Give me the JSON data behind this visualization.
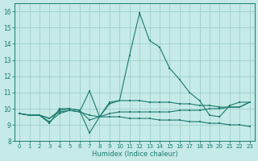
{
  "xlabel": "Humidex (Indice chaleur)",
  "bg_color": "#c5eae7",
  "grid_color": "#9ecfcb",
  "line_color": "#1a7a6e",
  "xlim": [
    -0.5,
    23.5
  ],
  "ylim": [
    8,
    16.5
  ],
  "xticks": [
    0,
    1,
    2,
    3,
    4,
    5,
    6,
    7,
    8,
    9,
    10,
    11,
    12,
    13,
    14,
    15,
    16,
    17,
    18,
    19,
    20,
    21,
    22,
    23
  ],
  "yticks": [
    8,
    9,
    10,
    11,
    12,
    13,
    14,
    15,
    16
  ],
  "line1_x": [
    0,
    1,
    2,
    3,
    4,
    5,
    6,
    7,
    8,
    9,
    10,
    11,
    12,
    13,
    14,
    15,
    16,
    17,
    18,
    19,
    20,
    21,
    22,
    23
  ],
  "line1_y": [
    9.7,
    9.6,
    9.6,
    9.1,
    10.0,
    10.0,
    9.9,
    8.5,
    9.5,
    10.4,
    10.5,
    13.3,
    15.9,
    14.2,
    13.8,
    12.5,
    11.8,
    11.0,
    10.5,
    9.6,
    9.5,
    10.2,
    10.4,
    10.4
  ],
  "line2_x": [
    0,
    1,
    2,
    3,
    4,
    5,
    6,
    7,
    8,
    9,
    10,
    11,
    12,
    13,
    14,
    15,
    16,
    17,
    18,
    19,
    20,
    21,
    22,
    23
  ],
  "line2_y": [
    9.7,
    9.6,
    9.6,
    9.4,
    9.8,
    9.9,
    9.8,
    9.6,
    9.5,
    9.5,
    9.5,
    9.4,
    9.4,
    9.4,
    9.3,
    9.3,
    9.3,
    9.2,
    9.2,
    9.1,
    9.1,
    9.0,
    9.0,
    8.9
  ],
  "line3_x": [
    0,
    1,
    2,
    3,
    4,
    5,
    6,
    7,
    8,
    9,
    10,
    11,
    12,
    13,
    14,
    15,
    16,
    17,
    18,
    19,
    20,
    21,
    22,
    23
  ],
  "line3_y": [
    9.7,
    9.6,
    9.6,
    9.4,
    9.9,
    10.0,
    9.9,
    9.3,
    9.5,
    9.7,
    9.8,
    9.8,
    9.8,
    9.8,
    9.8,
    9.8,
    9.9,
    9.9,
    9.9,
    10.0,
    10.0,
    10.1,
    10.1,
    10.4
  ],
  "line4_x": [
    0,
    1,
    2,
    3,
    4,
    5,
    6,
    7,
    8,
    9,
    10,
    11,
    12,
    13,
    14,
    15,
    16,
    17,
    18,
    19,
    20,
    21,
    22,
    23
  ],
  "line4_y": [
    9.7,
    9.6,
    9.6,
    9.2,
    9.7,
    9.9,
    9.8,
    11.1,
    9.5,
    10.3,
    10.5,
    10.5,
    10.5,
    10.4,
    10.4,
    10.4,
    10.3,
    10.3,
    10.2,
    10.2,
    10.1,
    10.1,
    10.1,
    10.4
  ]
}
